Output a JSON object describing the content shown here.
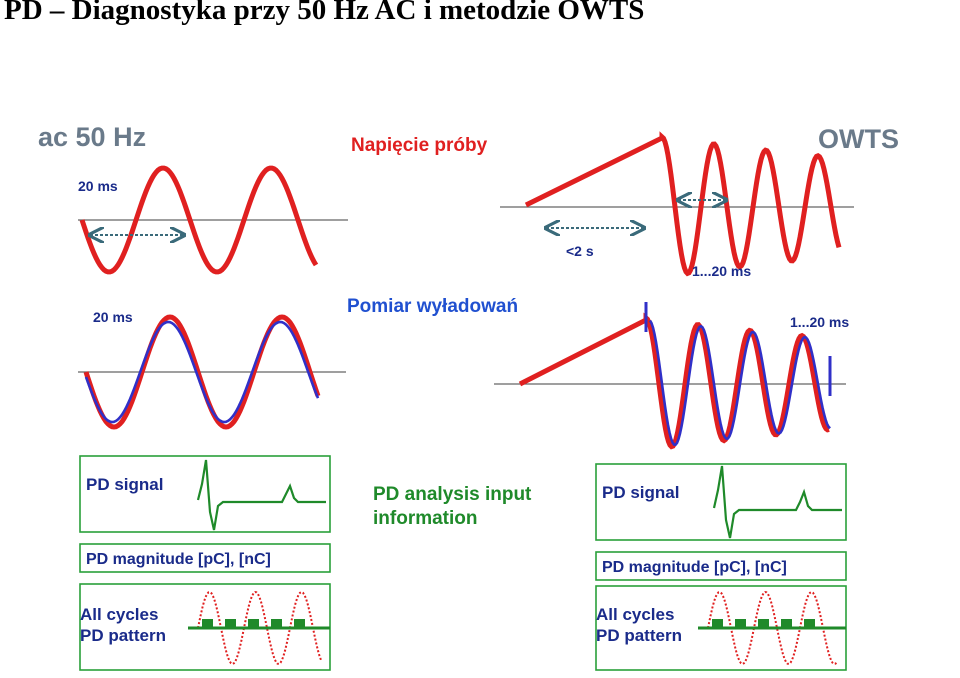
{
  "page": {
    "title": "PD – Diagnostyka przy 50 Hz AC i metodzie OWTS"
  },
  "colors": {
    "red": "#e02020",
    "blue": "#3030c8",
    "green": "#1f8a2a",
    "dark_blue_text": "#1a2b8a",
    "grey_text": "#6a7a8a",
    "box_border": "#2aa03a",
    "axis": "#666666"
  },
  "diagram": {
    "ac_title": "ac 50 Hz",
    "owts_title": "OWTS",
    "test_voltage_label": "Napięcie próby",
    "pd_measurement_label": "Pomiar wyładowań",
    "ac_period_top": "20 ms",
    "ac_period_bottom": "20 ms",
    "owts_ramp_time": "<2 s",
    "owts_period_top": "1...20 ms",
    "owts_period_bottom": "1...20 ms",
    "center_info_line1": "PD analysis input",
    "center_info_line2": "information",
    "left_boxes": {
      "signal": "PD signal",
      "magnitude": "PD magnitude [pC], [nC]",
      "pattern_line1": "All cycles",
      "pattern_line2": "PD pattern"
    },
    "right_boxes": {
      "signal": "PD signal",
      "magnitude": "PD magnitude [pC], [nC]",
      "pattern_line1": "All cycles",
      "pattern_line2": "PD pattern"
    }
  }
}
